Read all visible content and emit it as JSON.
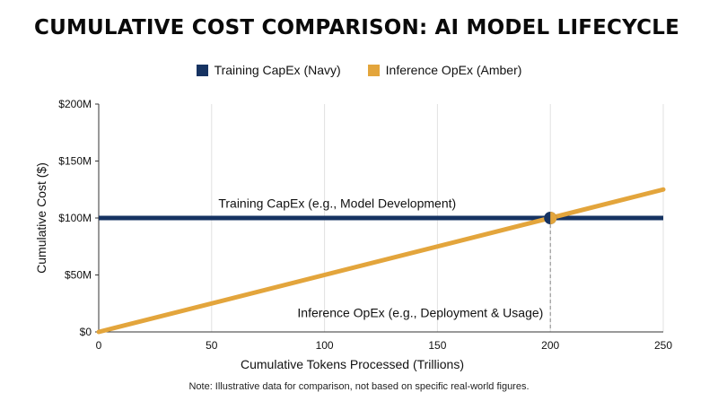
{
  "chart_data": {
    "type": "line",
    "title": "CUMULATIVE COST COMPARISON: AI MODEL LIFECYCLE",
    "xlabel": "Cumulative Tokens Processed (Trillions)",
    "ylabel": "Cumulative Cost ($)",
    "xlim": [
      0,
      250
    ],
    "ylim": [
      0,
      200
    ],
    "x_ticks": [
      "0",
      "50",
      "100",
      "150",
      "200",
      "250"
    ],
    "x_tick_values": [
      0,
      50,
      100,
      150,
      200,
      250
    ],
    "y_ticks": [
      "$0",
      "$50M",
      "$100M",
      "$150M",
      "$200M"
    ],
    "y_tick_values": [
      0,
      50,
      100,
      150,
      200
    ],
    "grid": "vertical",
    "legend_position": "top-center",
    "series": [
      {
        "name": "Training CapEx (Navy)",
        "color": "#163362",
        "x": [
          0,
          250
        ],
        "y": [
          100,
          100
        ],
        "annotation": "Training CapEx (e.g., Model Development)"
      },
      {
        "name": "Inference OpEx (Amber)",
        "color": "#e3a53c",
        "x": [
          0,
          250
        ],
        "y": [
          0,
          125
        ],
        "annotation": "Inference OpEx (e.g., Deployment & Usage)"
      }
    ],
    "intersection": {
      "x": 200,
      "y": 100
    },
    "footnote": "Note: Illustrative data for comparison, not based on specific real-world figures."
  }
}
